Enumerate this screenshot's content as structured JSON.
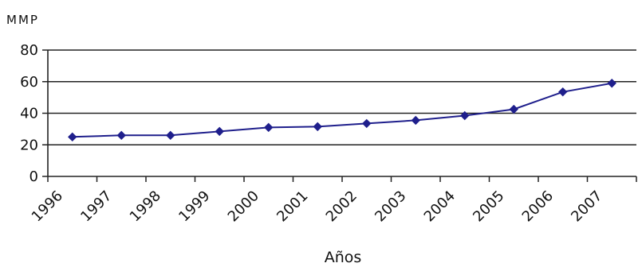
{
  "chart_data": {
    "type": "line",
    "title": "",
    "xlabel": "Años",
    "ylabel": "MMP",
    "categories": [
      "1996",
      "1997",
      "1998",
      "1999",
      "2000",
      "2001",
      "2002",
      "2003",
      "2004",
      "2005",
      "2006",
      "2007"
    ],
    "series": [
      {
        "values": [
          25,
          26,
          26,
          28.5,
          31,
          31.5,
          33.5,
          35.5,
          38.5,
          42.5,
          53.5,
          59
        ],
        "color": "#1f1f8c"
      }
    ],
    "ylim": [
      0,
      80
    ],
    "yticks": [
      0,
      20,
      40,
      60,
      80
    ],
    "grid": "horizontal",
    "legend": "none"
  }
}
